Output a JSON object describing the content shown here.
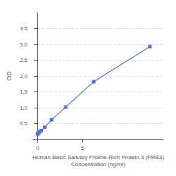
{
  "chart_data": {
    "type": "line",
    "xlabel": "Human Basic Salivary Proline-Rich Protein 3 (PRB3)\nConcentration (ng/ml)",
    "ylabel": "OD",
    "x": [
      0.0,
      0.05,
      0.1,
      0.2,
      0.4,
      0.8,
      1.563,
      3.125,
      6.25,
      12.5
    ],
    "values": [
      0.17,
      0.19,
      0.21,
      0.23,
      0.28,
      0.38,
      0.62,
      1.02,
      1.82,
      2.93
    ],
    "marker": "square",
    "line_style": "solid",
    "xlim": [
      -0.5,
      14.0
    ],
    "xticks": [
      0,
      5
    ],
    "ylim": [
      0.0,
      4.0
    ],
    "yticks": [
      0.5,
      {
        "value": 1.0,
        "label": "1.0"
      },
      1.5,
      {
        "value": 2.0,
        "label": "2.0"
      },
      2.5,
      {
        "value": 3.0,
        "label": "3.0"
      },
      3.5
    ],
    "grid": "y"
  }
}
